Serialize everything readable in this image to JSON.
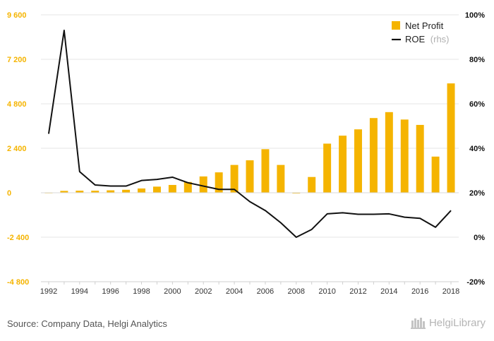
{
  "colors": {
    "bar": "#F5B400",
    "line": "#111111",
    "grid": "#e6e6e6",
    "left_axis_text": "#F5B400",
    "right_axis_text": "#111111"
  },
  "source": "Source: Company Data, Helgi Analytics",
  "logo": {
    "name": "helgi-library-logo",
    "text": "HelgiLibrary"
  },
  "chart_data": {
    "type": "bar",
    "x": [
      1992,
      1993,
      1994,
      1995,
      1996,
      1997,
      1998,
      1999,
      2000,
      2001,
      2002,
      2003,
      2004,
      2005,
      2006,
      2007,
      2008,
      2009,
      2010,
      2011,
      2012,
      2013,
      2014,
      2015,
      2016,
      2017,
      2018
    ],
    "series": [
      {
        "name": "Net Profit",
        "type": "bar",
        "axis": "left",
        "values": [
          10,
          100,
          110,
          110,
          130,
          160,
          230,
          330,
          420,
          580,
          880,
          1100,
          1500,
          1750,
          2350,
          1500,
          -40,
          850,
          2650,
          3080,
          3420,
          4030,
          4350,
          3950,
          3660,
          1950,
          5900
        ]
      },
      {
        "name": "ROE (rhs)",
        "type": "line",
        "axis": "right",
        "values": [
          46.5,
          93,
          29.5,
          23.5,
          23,
          23,
          25.5,
          26,
          27,
          24.5,
          23,
          21.5,
          21.5,
          16,
          12,
          6.5,
          0,
          3.5,
          10.5,
          11,
          10.3,
          10.3,
          10.5,
          9,
          8.5,
          4.5,
          12
        ]
      }
    ],
    "legend": {
      "position": "top-right",
      "entries": [
        {
          "label": "Net Profit"
        },
        {
          "label": "ROE",
          "suffix": "(rhs)"
        }
      ]
    },
    "y_left": {
      "range": [
        -4800,
        9600
      ],
      "ticks": [
        -4800,
        -2400,
        0,
        2400,
        4800,
        7200,
        9600
      ],
      "tick_labels": [
        "-4 800",
        "-2 400",
        "0",
        "2 400",
        "4 800",
        "7 200",
        "9 600"
      ]
    },
    "y_right": {
      "range": [
        -20,
        100
      ],
      "ticks": [
        -20,
        0,
        20,
        40,
        60,
        80,
        100
      ],
      "tick_labels": [
        "-20%",
        "0%",
        "20%",
        "40%",
        "60%",
        "80%",
        "100%"
      ]
    },
    "x_tick_labels": [
      "1992",
      "1994",
      "1996",
      "1998",
      "2000",
      "2002",
      "2004",
      "2006",
      "2008",
      "2010",
      "2012",
      "2014",
      "2016",
      "2018"
    ],
    "grid": true
  }
}
